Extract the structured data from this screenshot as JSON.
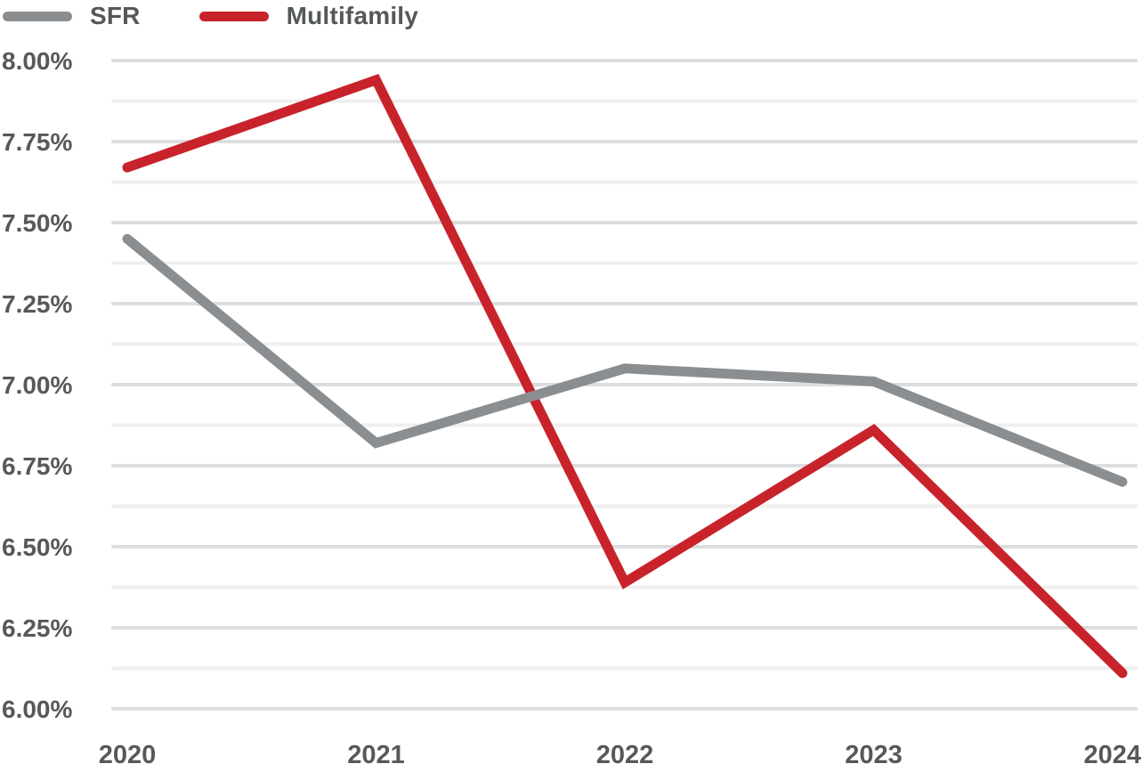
{
  "legend": {
    "items": [
      {
        "label": "SFR",
        "color": "#8B8E91"
      },
      {
        "label": "Multifamily",
        "color": "#C8232B"
      }
    ]
  },
  "chart_data": {
    "type": "line",
    "title": "",
    "x_categories": [
      "2020",
      "2021",
      "2022",
      "2023",
      "2024"
    ],
    "series": [
      {
        "name": "SFR",
        "color": "#8B8E91",
        "values": [
          7.45,
          6.82,
          7.05,
          7.01,
          6.7
        ]
      },
      {
        "name": "Multifamily",
        "color": "#C8232B",
        "values": [
          7.67,
          7.94,
          6.39,
          6.86,
          6.11
        ]
      }
    ],
    "ylim": [
      6.0,
      8.0
    ],
    "y_major_step": 0.25,
    "y_minor_step": 0.125,
    "y_tick_labels": [
      "6.00%",
      "6.25%",
      "6.50%",
      "6.75%",
      "7.00%",
      "7.25%",
      "7.50%",
      "7.75%",
      "8.00%"
    ],
    "unit": "percent",
    "grid": "horizontal",
    "legend_position": "top-left",
    "colors": {
      "major_gridline": "#DBDDDF",
      "minor_gridline": "#EFEFF0",
      "tick_label_text": "#56585B",
      "background": "#FFFFFF"
    }
  }
}
